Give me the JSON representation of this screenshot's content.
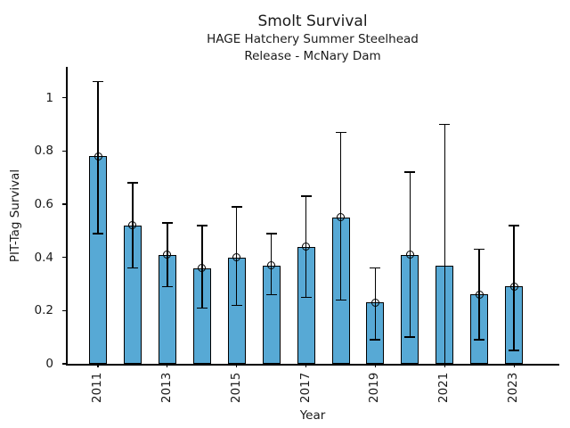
{
  "chart_data": {
    "type": "bar",
    "title": "Smolt Survival",
    "subtitle1": "HAGE Hatchery Summer Steelhead",
    "subtitle2": "Release - McNary Dam",
    "xlabel": "Year",
    "ylabel": "PIT-Tag Survival",
    "categories": [
      2011,
      2012,
      2013,
      2014,
      2015,
      2016,
      2017,
      2018,
      2019,
      2020,
      2021,
      2022,
      2023
    ],
    "values": [
      0.78,
      0.52,
      0.41,
      0.36,
      0.4,
      0.37,
      0.44,
      0.55,
      0.23,
      0.41,
      0.37,
      0.26,
      0.29
    ],
    "error_low": [
      0.49,
      0.36,
      0.29,
      0.21,
      0.22,
      0.26,
      0.25,
      0.24,
      0.09,
      0.1,
      0.0,
      0.09,
      0.05
    ],
    "error_high": [
      1.06,
      0.68,
      0.53,
      0.52,
      0.59,
      0.49,
      0.63,
      0.87,
      0.36,
      0.72,
      0.9,
      0.43,
      0.52
    ],
    "marker_shown": [
      true,
      true,
      true,
      true,
      true,
      true,
      true,
      true,
      true,
      true,
      false,
      true,
      true
    ],
    "marker_style": "open-circle",
    "xtick_labels": [
      "2011",
      "2013",
      "2015",
      "2017",
      "2019",
      "2021",
      "2023"
    ],
    "yticks": [
      0,
      0.2,
      0.4,
      0.6,
      0.8,
      1
    ],
    "ylim": [
      0,
      1.12
    ],
    "bar_color": "#57a9d5",
    "bar_edge_color": "#000000",
    "error_color": "#000000",
    "grid": false,
    "legend": null
  }
}
